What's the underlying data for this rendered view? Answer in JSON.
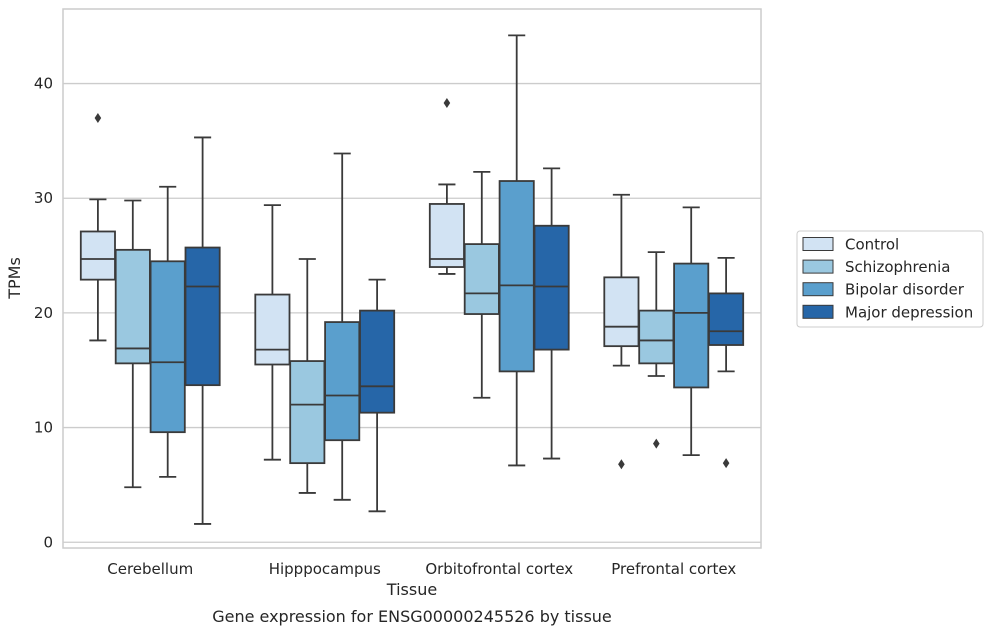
{
  "caption": "Gene expression for ENSG00000245526 by tissue",
  "chart_data": {
    "type": "box",
    "xlabel": "Tissue",
    "ylabel": "TPMs",
    "ylim": [
      -0.5,
      46.5
    ],
    "yticks": [
      0,
      10,
      20,
      30,
      40
    ],
    "categories": [
      "Cerebellum",
      "Hipppocampus",
      "Orbitofrontal cortex",
      "Prefrontal cortex"
    ],
    "legend_position": "right",
    "grid": "horizontal",
    "series": [
      {
        "name": "Control",
        "color": "#d2e3f3",
        "boxes": [
          {
            "whislo": 17.6,
            "q1": 22.9,
            "med": 24.7,
            "q3": 27.1,
            "whishi": 29.9,
            "fliers": [
              37.0
            ]
          },
          {
            "whislo": 7.2,
            "q1": 15.5,
            "med": 16.8,
            "q3": 21.6,
            "whishi": 29.4,
            "fliers": []
          },
          {
            "whislo": 23.4,
            "q1": 24.0,
            "med": 24.7,
            "q3": 29.5,
            "whishi": 31.2,
            "fliers": [
              38.3
            ]
          },
          {
            "whislo": 15.4,
            "q1": 17.1,
            "med": 18.8,
            "q3": 23.1,
            "whishi": 30.3,
            "fliers": [
              6.8
            ]
          }
        ]
      },
      {
        "name": "Schizophrenia",
        "color": "#9ac8e0",
        "boxes": [
          {
            "whislo": 4.8,
            "q1": 15.6,
            "med": 16.9,
            "q3": 25.5,
            "whishi": 29.8,
            "fliers": []
          },
          {
            "whislo": 4.3,
            "q1": 6.9,
            "med": 12.0,
            "q3": 15.8,
            "whishi": 24.7,
            "fliers": []
          },
          {
            "whislo": 12.6,
            "q1": 19.9,
            "med": 21.7,
            "q3": 26.0,
            "whishi": 32.3,
            "fliers": []
          },
          {
            "whislo": 14.5,
            "q1": 15.6,
            "med": 17.6,
            "q3": 20.2,
            "whishi": 25.3,
            "fliers": [
              8.6
            ]
          }
        ]
      },
      {
        "name": "Bipolar disorder",
        "color": "#5a9fcd",
        "boxes": [
          {
            "whislo": 5.7,
            "q1": 9.6,
            "med": 15.7,
            "q3": 24.5,
            "whishi": 31.0,
            "fliers": []
          },
          {
            "whislo": 3.7,
            "q1": 8.9,
            "med": 12.8,
            "q3": 19.2,
            "whishi": 33.9,
            "fliers": []
          },
          {
            "whislo": 6.7,
            "q1": 14.9,
            "med": 22.4,
            "q3": 31.5,
            "whishi": 44.2,
            "fliers": []
          },
          {
            "whislo": 7.6,
            "q1": 13.5,
            "med": 20.0,
            "q3": 24.3,
            "whishi": 29.2,
            "fliers": []
          }
        ]
      },
      {
        "name": "Major depression",
        "color": "#2666a8",
        "boxes": [
          {
            "whislo": 1.6,
            "q1": 13.7,
            "med": 22.3,
            "q3": 25.7,
            "whishi": 35.3,
            "fliers": []
          },
          {
            "whislo": 2.7,
            "q1": 11.3,
            "med": 13.6,
            "q3": 20.2,
            "whishi": 22.9,
            "fliers": []
          },
          {
            "whislo": 7.3,
            "q1": 16.8,
            "med": 22.3,
            "q3": 27.6,
            "whishi": 32.6,
            "fliers": []
          },
          {
            "whislo": 14.9,
            "q1": 17.2,
            "med": 18.4,
            "q3": 21.7,
            "whishi": 24.8,
            "fliers": [
              6.9
            ]
          }
        ]
      }
    ]
  }
}
